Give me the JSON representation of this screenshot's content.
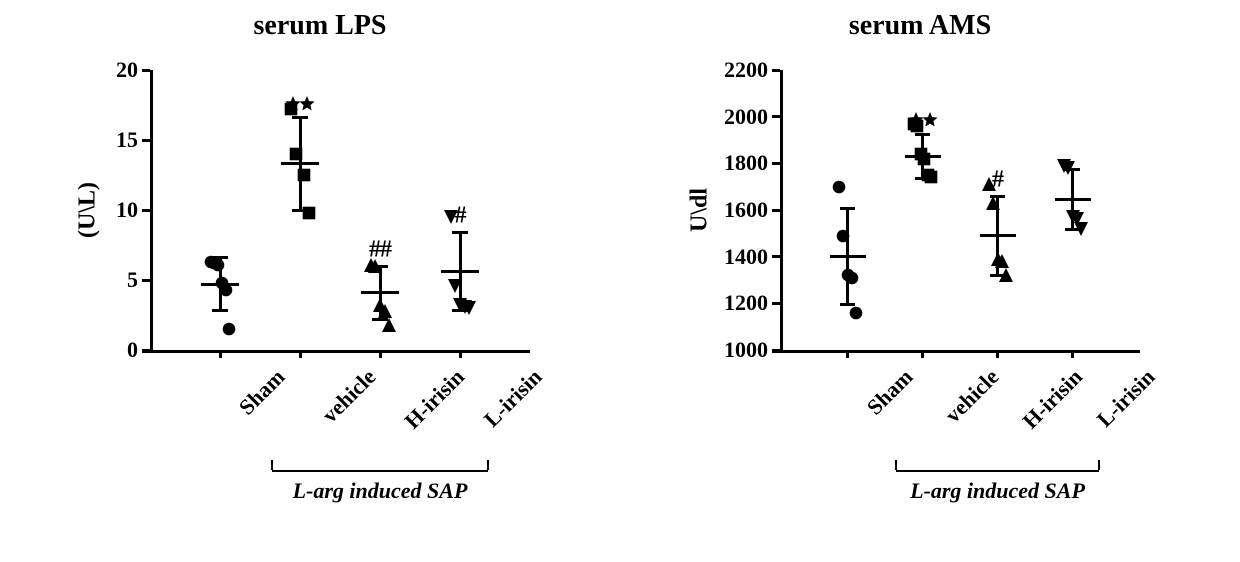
{
  "figure": {
    "background_color": "#ffffff",
    "ink_color": "#000000",
    "panels": [
      {
        "id": "lps",
        "title": "serum LPS",
        "ylabel": "(U\\L)",
        "type": "scatter-dot-meanSD",
        "ylim": [
          0,
          20
        ],
        "yticks": [
          0,
          5,
          10,
          15,
          20
        ],
        "axis_linewidth": 3,
        "tick_length": 8,
        "categories": [
          "Sham",
          "vehicle",
          "H-irisin",
          "L-irisin"
        ],
        "bracket": {
          "from_cat": 1,
          "to_cat": 3,
          "label": "L-arg induced SAP"
        },
        "title_fontsize": 28,
        "label_fontsize": 24,
        "tick_fontsize": 22,
        "marker_size": 14,
        "marker_color": "#000000",
        "mean_line_halfwidth": 0.24,
        "cap_halfwidth": 0.1,
        "jitter": 0.11,
        "groups": [
          {
            "cat": "Sham",
            "marker": "circle",
            "points": [
              6.3,
              6.2,
              6.1,
              4.8,
              4.3,
              1.5
            ],
            "mean": 4.7,
            "sd": 1.9,
            "sig": null
          },
          {
            "cat": "vehicle",
            "marker": "square",
            "points": [
              17.2,
              14.0,
              12.5,
              9.8
            ],
            "mean": 13.3,
            "sd": 3.3,
            "sig": "**"
          },
          {
            "cat": "H-irisin",
            "marker": "triangle-up",
            "points": [
              6.1,
              6.0,
              3.2,
              2.8,
              1.8
            ],
            "mean": 4.1,
            "sd": 1.9,
            "sig": "##"
          },
          {
            "cat": "L-irisin",
            "marker": "triangle-down",
            "points": [
              9.5,
              4.6,
              3.2,
              3.1,
              3.0
            ],
            "mean": 5.6,
            "sd": 2.8,
            "sig": "#"
          }
        ]
      },
      {
        "id": "ams",
        "title": "serum AMS",
        "ylabel": "U\\dl",
        "type": "scatter-dot-meanSD",
        "ylim": [
          1000,
          2200
        ],
        "yticks": [
          1000,
          1200,
          1400,
          1600,
          1800,
          2000,
          2200
        ],
        "axis_linewidth": 3,
        "tick_length": 8,
        "categories": [
          "Sham",
          "vehicle",
          "H-irisin",
          "L-irisin"
        ],
        "bracket": {
          "from_cat": 1,
          "to_cat": 3,
          "label": "L-arg induced SAP"
        },
        "title_fontsize": 28,
        "label_fontsize": 24,
        "tick_fontsize": 22,
        "marker_size": 14,
        "marker_color": "#000000",
        "mean_line_halfwidth": 0.24,
        "cap_halfwidth": 0.1,
        "jitter": 0.11,
        "groups": [
          {
            "cat": "Sham",
            "marker": "circle",
            "points": [
              1700,
              1490,
              1320,
              1310,
              1160
            ],
            "mean": 1400,
            "sd": 205,
            "sig": null
          },
          {
            "cat": "vehicle",
            "marker": "square",
            "points": [
              1970,
              1960,
              1840,
              1820,
              1750,
              1740
            ],
            "mean": 1830,
            "sd": 95,
            "sig": "**"
          },
          {
            "cat": "H-irisin",
            "marker": "triangle-up",
            "points": [
              1710,
              1630,
              1390,
              1380,
              1320
            ],
            "mean": 1490,
            "sd": 170,
            "sig": "#"
          },
          {
            "cat": "L-irisin",
            "marker": "triangle-down",
            "points": [
              1790,
              1780,
              1570,
              1560,
              1520
            ],
            "mean": 1645,
            "sd": 130,
            "sig": null
          }
        ]
      }
    ]
  }
}
